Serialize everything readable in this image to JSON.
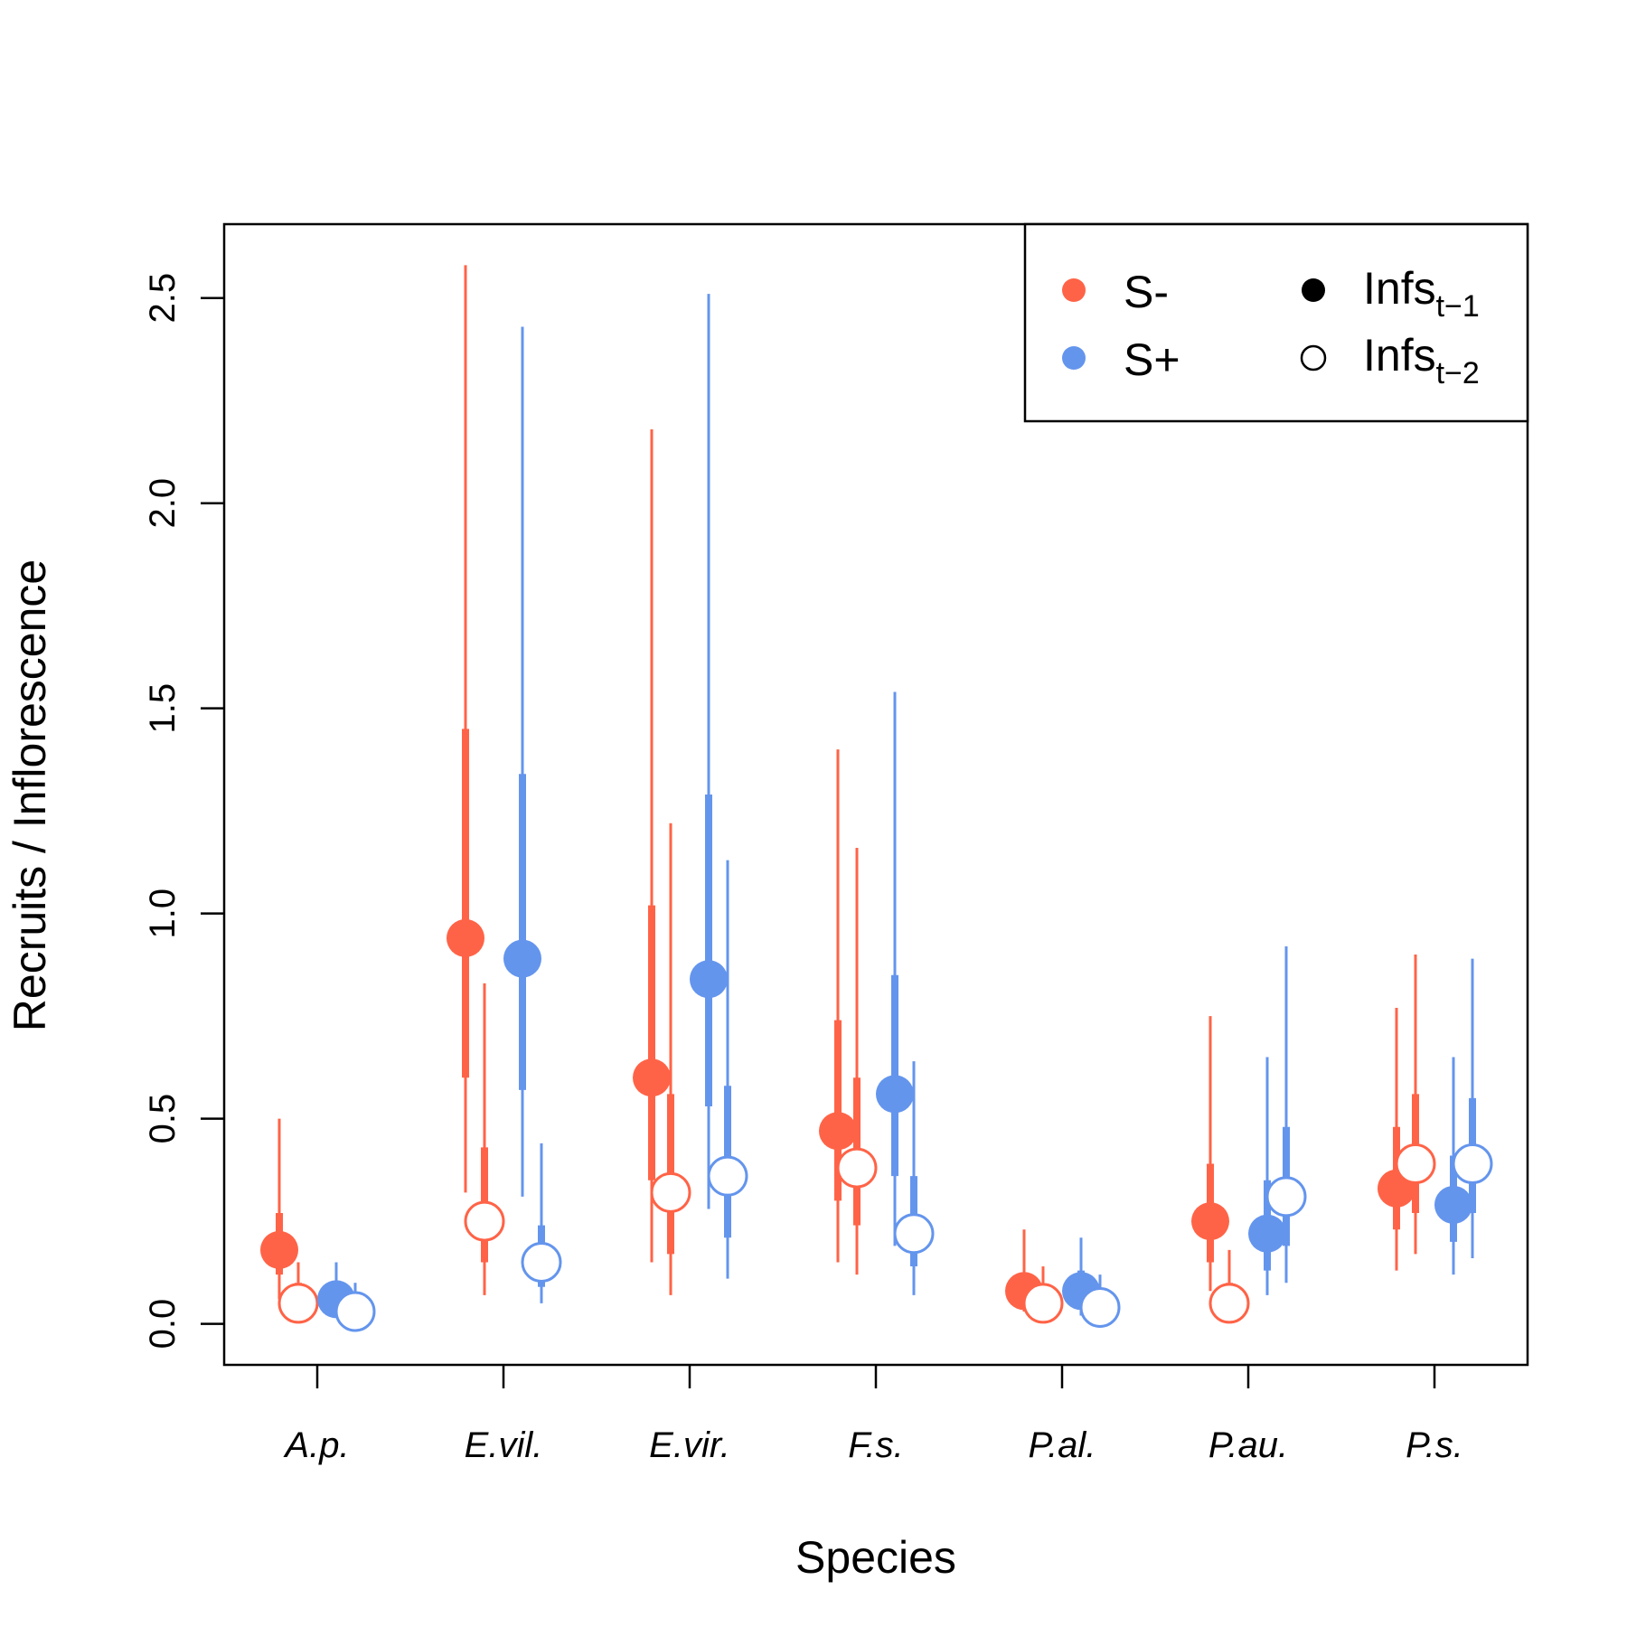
{
  "chart_data": {
    "type": "scatter",
    "xlabel": "Species",
    "ylabel": "Recruits / Inflorescence",
    "ylim": [
      -0.1,
      2.68
    ],
    "yticks": [
      "0.0",
      "0.5",
      "1.0",
      "1.5",
      "2.0",
      "2.5"
    ],
    "categories": [
      "A.p.",
      "E.vil.",
      "E.vir.",
      "F.s.",
      "P.al.",
      "P.au.",
      "P.s."
    ],
    "colors": {
      "s_minus": "#ff6347",
      "s_plus": "#6495ed",
      "marker": "#000000"
    },
    "legend": {
      "position": "top-right",
      "entries": [
        {
          "label": "S-",
          "color": "#ff6347",
          "marker": "filled-circle"
        },
        {
          "label": "S+",
          "color": "#6495ed",
          "marker": "filled-circle"
        },
        {
          "base": "Infs",
          "sub": "t−1",
          "color": "#000000",
          "marker": "filled-circle"
        },
        {
          "base": "Infs",
          "sub": "t−2",
          "color": "#000000",
          "marker": "open-circle"
        }
      ]
    },
    "series": [
      {
        "endophyte": "S-",
        "lag": "t-1",
        "filled": true,
        "color": "#ff6347",
        "mean": [
          0.18,
          0.94,
          0.6,
          0.47,
          0.08,
          0.25,
          0.33
        ],
        "inner": [
          [
            0.12,
            0.27
          ],
          [
            0.6,
            1.45
          ],
          [
            0.35,
            1.02
          ],
          [
            0.3,
            0.74
          ],
          [
            0.06,
            0.11
          ],
          [
            0.15,
            0.39
          ],
          [
            0.23,
            0.48
          ]
        ],
        "outer": [
          [
            0.06,
            0.5
          ],
          [
            0.32,
            2.58
          ],
          [
            0.15,
            2.18
          ],
          [
            0.15,
            1.4
          ],
          [
            0.03,
            0.23
          ],
          [
            0.08,
            0.75
          ],
          [
            0.13,
            0.77
          ]
        ]
      },
      {
        "endophyte": "S-",
        "lag": "t-2",
        "filled": false,
        "color": "#ff6347",
        "mean": [
          0.05,
          0.25,
          0.32,
          0.38,
          0.05,
          0.05,
          0.39
        ],
        "inner": [
          [
            0.03,
            0.1
          ],
          [
            0.15,
            0.43
          ],
          [
            0.17,
            0.56
          ],
          [
            0.24,
            0.6
          ],
          [
            0.03,
            0.08
          ],
          [
            0.03,
            0.1
          ],
          [
            0.27,
            0.56
          ]
        ],
        "outer": [
          [
            0.02,
            0.15
          ],
          [
            0.07,
            0.83
          ],
          [
            0.07,
            1.22
          ],
          [
            0.12,
            1.16
          ],
          [
            0.02,
            0.14
          ],
          [
            0.02,
            0.18
          ],
          [
            0.17,
            0.9
          ]
        ]
      },
      {
        "endophyte": "S+",
        "lag": "t-1",
        "filled": true,
        "color": "#6495ed",
        "mean": [
          0.06,
          0.89,
          0.84,
          0.56,
          0.08,
          0.22,
          0.29
        ],
        "inner": [
          [
            0.04,
            0.09
          ],
          [
            0.57,
            1.34
          ],
          [
            0.53,
            1.29
          ],
          [
            0.36,
            0.85
          ],
          [
            0.05,
            0.13
          ],
          [
            0.13,
            0.35
          ],
          [
            0.2,
            0.41
          ]
        ],
        "outer": [
          [
            0.02,
            0.15
          ],
          [
            0.31,
            2.43
          ],
          [
            0.28,
            2.51
          ],
          [
            0.19,
            1.54
          ],
          [
            0.02,
            0.21
          ],
          [
            0.07,
            0.65
          ],
          [
            0.12,
            0.65
          ]
        ]
      },
      {
        "endophyte": "S+",
        "lag": "t-2",
        "filled": false,
        "color": "#6495ed",
        "mean": [
          0.03,
          0.15,
          0.36,
          0.22,
          0.04,
          0.31,
          0.39
        ],
        "inner": [
          [
            0.02,
            0.06
          ],
          [
            0.09,
            0.24
          ],
          [
            0.21,
            0.58
          ],
          [
            0.14,
            0.36
          ],
          [
            0.02,
            0.07
          ],
          [
            0.19,
            0.48
          ],
          [
            0.27,
            0.55
          ]
        ],
        "outer": [
          [
            0.01,
            0.1
          ],
          [
            0.05,
            0.44
          ],
          [
            0.11,
            1.13
          ],
          [
            0.07,
            0.64
          ],
          [
            0.01,
            0.12
          ],
          [
            0.1,
            0.92
          ],
          [
            0.16,
            0.89
          ]
        ]
      }
    ]
  }
}
